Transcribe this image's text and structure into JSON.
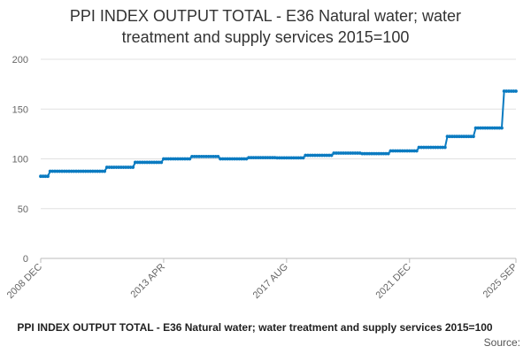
{
  "title_lines": [
    "PPI INDEX OUTPUT TOTAL - E36 Natural water; water",
    "treatment and supply services 2015=100"
  ],
  "footer": {
    "caption": "PPI INDEX OUTPUT TOTAL - E36 Natural water; water treatment and supply services 2015=100",
    "source_label": "Source:"
  },
  "chart_data": {
    "type": "line",
    "title": "PPI INDEX OUTPUT TOTAL - E36 Natural water; water treatment and supply services 2015=100",
    "xlabel": "",
    "ylabel": "",
    "x_range": [
      "2008-12",
      "2025-09"
    ],
    "x_tick_labels": [
      "2008 DEC",
      "2013 APR",
      "2017 AUG",
      "2021 DEC",
      "2025 SEP"
    ],
    "x_tick_months": [
      "2008-12",
      "2013-04",
      "2017-08",
      "2021-12",
      "2025-09"
    ],
    "ylim": [
      0,
      200
    ],
    "y_ticks": [
      0,
      50,
      100,
      150,
      200
    ],
    "grid": true,
    "legend": "none",
    "line_color": "#0b7bc1",
    "marker": "circle",
    "series": [
      {
        "steps": [
          {
            "from": "2008-12",
            "to": "2009-03",
            "value": 82.5
          },
          {
            "from": "2009-04",
            "to": "2010-03",
            "value": 87.5
          },
          {
            "from": "2010-04",
            "to": "2011-03",
            "value": 87.5
          },
          {
            "from": "2011-04",
            "to": "2012-03",
            "value": 91.5
          },
          {
            "from": "2012-04",
            "to": "2013-03",
            "value": 96.5
          },
          {
            "from": "2013-04",
            "to": "2014-03",
            "value": 100.0
          },
          {
            "from": "2014-04",
            "to": "2015-03",
            "value": 102.3
          },
          {
            "from": "2015-04",
            "to": "2016-03",
            "value": 100.0
          },
          {
            "from": "2016-04",
            "to": "2017-03",
            "value": 101.2
          },
          {
            "from": "2017-04",
            "to": "2018-03",
            "value": 101.0
          },
          {
            "from": "2018-04",
            "to": "2019-03",
            "value": 103.5
          },
          {
            "from": "2019-04",
            "to": "2020-03",
            "value": 105.8
          },
          {
            "from": "2020-04",
            "to": "2021-03",
            "value": 105.2
          },
          {
            "from": "2021-04",
            "to": "2022-03",
            "value": 108.0
          },
          {
            "from": "2022-04",
            "to": "2023-03",
            "value": 111.5
          },
          {
            "from": "2023-04",
            "to": "2024-03",
            "value": 122.5
          },
          {
            "from": "2024-04",
            "to": "2025-03",
            "value": 131.0
          },
          {
            "from": "2025-04",
            "to": "2025-09",
            "value": 168.0
          }
        ]
      }
    ]
  }
}
